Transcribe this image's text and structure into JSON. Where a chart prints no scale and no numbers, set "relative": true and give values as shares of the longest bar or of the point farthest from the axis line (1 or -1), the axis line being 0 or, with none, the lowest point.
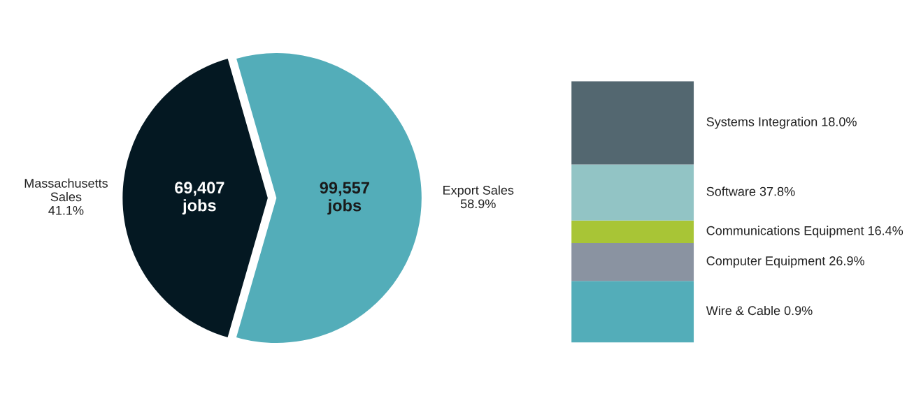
{
  "chart_data": [
    {
      "type": "pie",
      "categories": [
        "Massachusetts\nSales",
        "Export Sales"
      ],
      "values": [
        41.1,
        58.9
      ],
      "colors": [
        "#041822",
        "#53adb9"
      ],
      "value_labels": [
        "41.1%",
        "58.9%"
      ],
      "annotations": [
        "69,407\njobs",
        "99,557\njobs"
      ]
    },
    {
      "type": "bar",
      "stacked": true,
      "relative": true,
      "categories": [
        null
      ],
      "series": [
        {
          "name": "Wire & Cable 0.9%",
          "color": "#53adb9",
          "values": [
            0.236
          ]
        },
        {
          "name": "Computer Equipment 26.9%",
          "color": "#8a93a1",
          "values": [
            0.145
          ]
        },
        {
          "name": "Communications Equipment 16.4%",
          "color": "#a8c536",
          "values": [
            0.086
          ]
        },
        {
          "name": "Software 37.8%",
          "color": "#92c4c5",
          "values": [
            0.214
          ]
        },
        {
          "name": "Systems Integration 18.0%",
          "color": "#536770",
          "values": [
            0.319
          ]
        }
      ]
    }
  ]
}
